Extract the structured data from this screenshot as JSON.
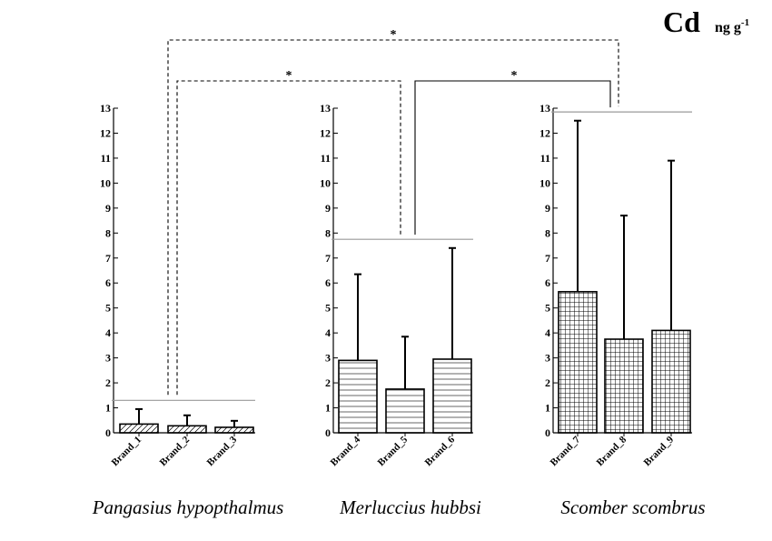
{
  "chart_data": {
    "type": "bar",
    "title": "Cd",
    "units": {
      "base": "ng g",
      "exponent": "-1"
    },
    "ylim": [
      0,
      13
    ],
    "y_ticks": [
      "0",
      "1",
      "2",
      "3",
      "4",
      "5",
      "6",
      "7",
      "8",
      "9",
      "10",
      "11",
      "12",
      "13"
    ],
    "panels": [
      {
        "species": "Pangasius hypopthalmus",
        "pattern": "diagonal",
        "categories": [
          "Brand_1",
          "Brand_2",
          "Brand_3"
        ],
        "values": [
          0.35,
          0.28,
          0.22
        ],
        "error_upper": [
          0.95,
          0.7,
          0.48
        ]
      },
      {
        "species": "Merluccius hubbsi",
        "pattern": "horizontal",
        "categories": [
          "Brand_4",
          "Brand_5",
          "Brand_6"
        ],
        "values": [
          2.9,
          1.75,
          2.95
        ],
        "error_upper": [
          6.35,
          3.85,
          7.4
        ]
      },
      {
        "species": "Scomber scombrus",
        "pattern": "grid",
        "categories": [
          "Brand_7",
          "Brand_8",
          "Brand_9"
        ],
        "values": [
          5.65,
          3.75,
          4.1
        ],
        "error_upper": [
          12.5,
          8.7,
          10.9
        ]
      }
    ],
    "significance": [
      {
        "from": "Pangasius hypopthalmus",
        "to": "Scomber scombrus",
        "label": "*",
        "style": "dashed"
      },
      {
        "from": "Pangasius hypopthalmus",
        "to": "Merluccius hubbsi",
        "label": "*",
        "style": "dashed"
      },
      {
        "from": "Merluccius hubbsi",
        "to": "Scomber scombrus",
        "label": "*",
        "style": "solid"
      }
    ],
    "grid": false
  }
}
